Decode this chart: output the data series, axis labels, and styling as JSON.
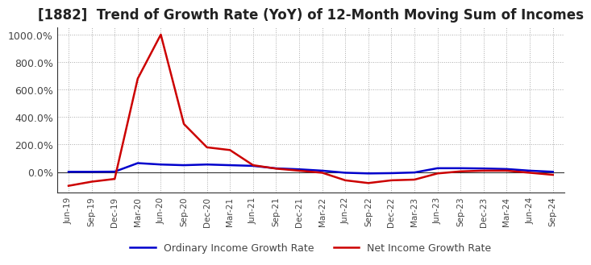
{
  "title": "[1882]  Trend of Growth Rate (YoY) of 12-Month Moving Sum of Incomes",
  "title_fontsize": 12,
  "ylim": [
    -150,
    1050
  ],
  "yticks": [
    0,
    200,
    400,
    600,
    800,
    1000
  ],
  "legend_labels": [
    "Ordinary Income Growth Rate",
    "Net Income Growth Rate"
  ],
  "legend_colors": [
    "#0000cc",
    "#cc0000"
  ],
  "bg_color": "#ffffff",
  "grid_color": "#aaaaaa",
  "dates": [
    "Jun-19",
    "Sep-19",
    "Dec-19",
    "Mar-20",
    "Jun-20",
    "Sep-20",
    "Dec-20",
    "Mar-21",
    "Jun-21",
    "Sep-21",
    "Dec-21",
    "Mar-22",
    "Jun-22",
    "Sep-22",
    "Dec-22",
    "Mar-23",
    "Jun-23",
    "Sep-23",
    "Dec-23",
    "Mar-24",
    "Jun-24",
    "Sep-24"
  ],
  "ordinary_income_growth": [
    2.0,
    2.0,
    3.0,
    65.0,
    55.0,
    50.0,
    55.0,
    50.0,
    45.0,
    27.0,
    20.0,
    10.0,
    -5.0,
    -10.0,
    -8.0,
    -3.0,
    28.0,
    28.0,
    26.0,
    22.0,
    10.0,
    2.0
  ],
  "net_income_growth": [
    -100.0,
    -70.0,
    -50.0,
    680.0,
    1000.0,
    350.0,
    180.0,
    160.0,
    50.0,
    25.0,
    10.0,
    -5.0,
    -60.0,
    -80.0,
    -60.0,
    -55.0,
    -10.0,
    5.0,
    10.0,
    10.0,
    -5.0,
    -20.0
  ]
}
